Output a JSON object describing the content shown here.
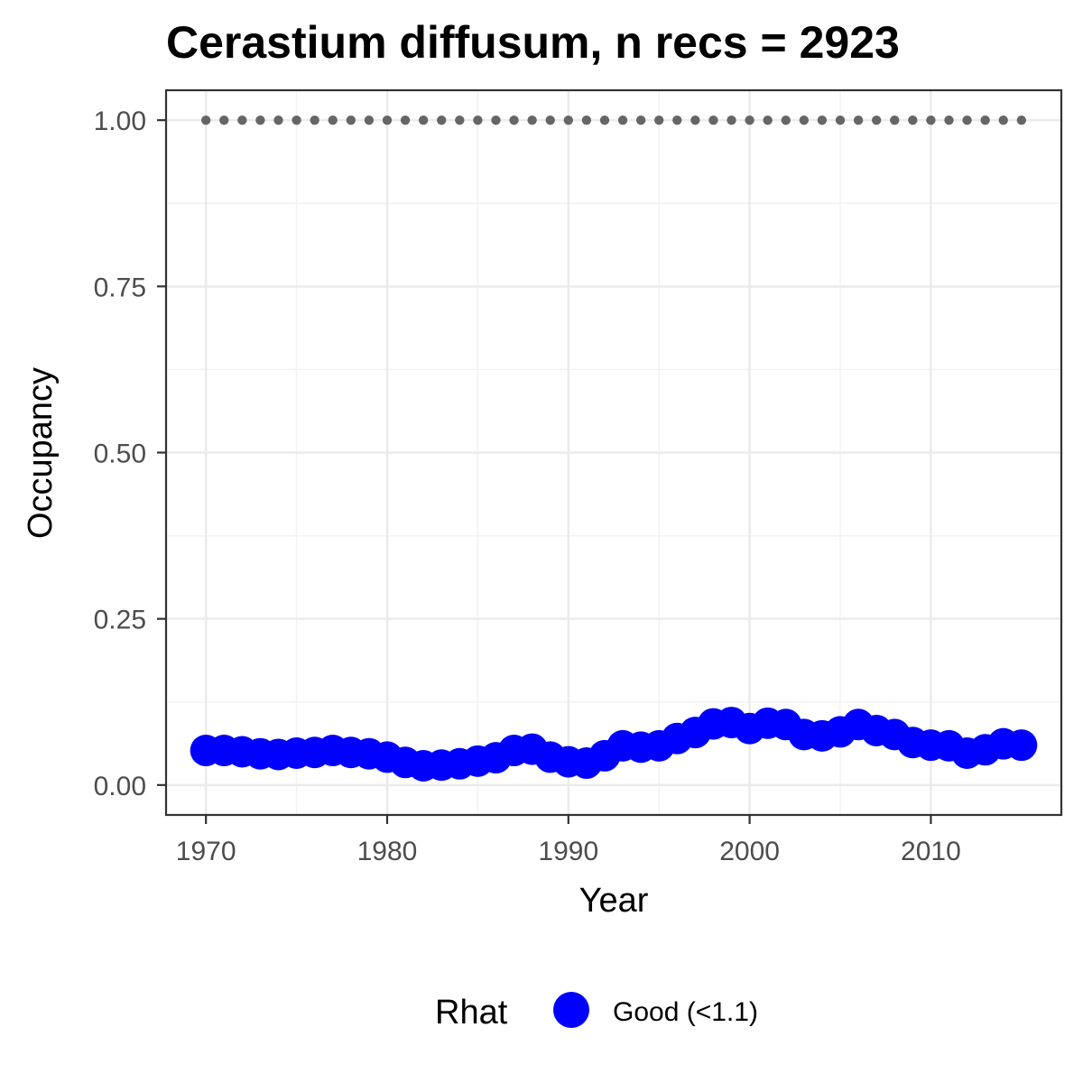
{
  "chart_data": {
    "type": "scatter",
    "title": "Cerastium diffusum, n recs = 2923",
    "xlabel": "Year",
    "ylabel": "Occupancy",
    "xlim": [
      1967.8,
      2017.2
    ],
    "ylim": [
      -0.045,
      1.045
    ],
    "x_ticks": [
      1970,
      1980,
      1990,
      2000,
      2010
    ],
    "x_tick_labels": [
      "1970",
      "1980",
      "1990",
      "2000",
      "2010"
    ],
    "y_ticks": [
      0,
      0.25,
      0.5,
      0.75,
      1.0
    ],
    "y_tick_labels": [
      "0.00",
      "0.25",
      "0.50",
      "0.75",
      "1.00"
    ],
    "grid": true,
    "legend": {
      "title": "Rhat",
      "placement": "bottom",
      "entries": [
        {
          "label": "Good (<1.1)",
          "color": "#0000ff"
        }
      ]
    },
    "series": [
      {
        "name": "Good (<1.1)",
        "color": "#0000ff",
        "x": [
          1970,
          1971,
          1972,
          1973,
          1974,
          1975,
          1976,
          1977,
          1978,
          1979,
          1980,
          1981,
          1982,
          1983,
          1984,
          1985,
          1986,
          1987,
          1988,
          1989,
          1990,
          1991,
          1992,
          1993,
          1994,
          1995,
          1996,
          1997,
          1998,
          1999,
          2000,
          2001,
          2002,
          2003,
          2004,
          2005,
          2006,
          2007,
          2008,
          2009,
          2010,
          2011,
          2012,
          2013,
          2014,
          2015
        ],
        "y": [
          0.052,
          0.052,
          0.05,
          0.047,
          0.046,
          0.048,
          0.049,
          0.052,
          0.049,
          0.047,
          0.042,
          0.034,
          0.029,
          0.03,
          0.032,
          0.036,
          0.041,
          0.052,
          0.054,
          0.042,
          0.035,
          0.033,
          0.044,
          0.059,
          0.057,
          0.059,
          0.07,
          0.079,
          0.092,
          0.094,
          0.085,
          0.093,
          0.091,
          0.076,
          0.074,
          0.08,
          0.091,
          0.082,
          0.076,
          0.064,
          0.06,
          0.059,
          0.048,
          0.053,
          0.062,
          0.06
        ]
      }
    ],
    "reference_points": {
      "color": "#666666",
      "x": [
        1970,
        1971,
        1972,
        1973,
        1974,
        1975,
        1976,
        1977,
        1978,
        1979,
        1980,
        1981,
        1982,
        1983,
        1984,
        1985,
        1986,
        1987,
        1988,
        1989,
        1990,
        1991,
        1992,
        1993,
        1994,
        1995,
        1996,
        1997,
        1998,
        1999,
        2000,
        2001,
        2002,
        2003,
        2004,
        2005,
        2006,
        2007,
        2008,
        2009,
        2010,
        2011,
        2012,
        2013,
        2014,
        2015
      ],
      "y": 1.0
    }
  }
}
